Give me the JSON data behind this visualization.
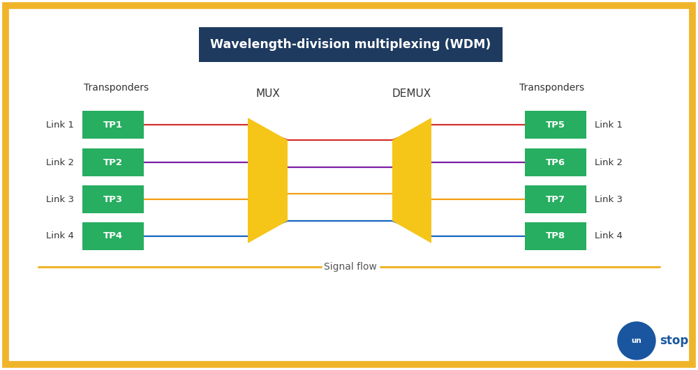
{
  "title": "Wavelength-division multiplexing (WDM)",
  "title_bg": "#1e3a5f",
  "title_color": "#ffffff",
  "bg_color": "#ffffff",
  "border_color": "#f0b429",
  "transponder_left_label": "Transponders",
  "transponder_right_label": "Transponders",
  "mux_label": "MUX",
  "demux_label": "DEMUX",
  "signal_flow_label": "Signal flow",
  "left_boxes": [
    "TP1",
    "TP2",
    "TP3",
    "TP4"
  ],
  "right_boxes": [
    "TP5",
    "TP6",
    "TP7",
    "TP8"
  ],
  "left_links": [
    "Link 1",
    "Link 2",
    "Link 3",
    "Link 4"
  ],
  "right_links": [
    "Link 1",
    "Link 2",
    "Link 3",
    "Link 4"
  ],
  "box_color": "#27ae60",
  "box_text_color": "#ffffff",
  "line_colors": [
    "#d32f2f",
    "#7b1fa2",
    "#f39c12",
    "#1565c0"
  ],
  "mux_color": "#f5c518",
  "unstop_circle_color": "#1a56a0",
  "unstop_text_color": "#1a56a0"
}
